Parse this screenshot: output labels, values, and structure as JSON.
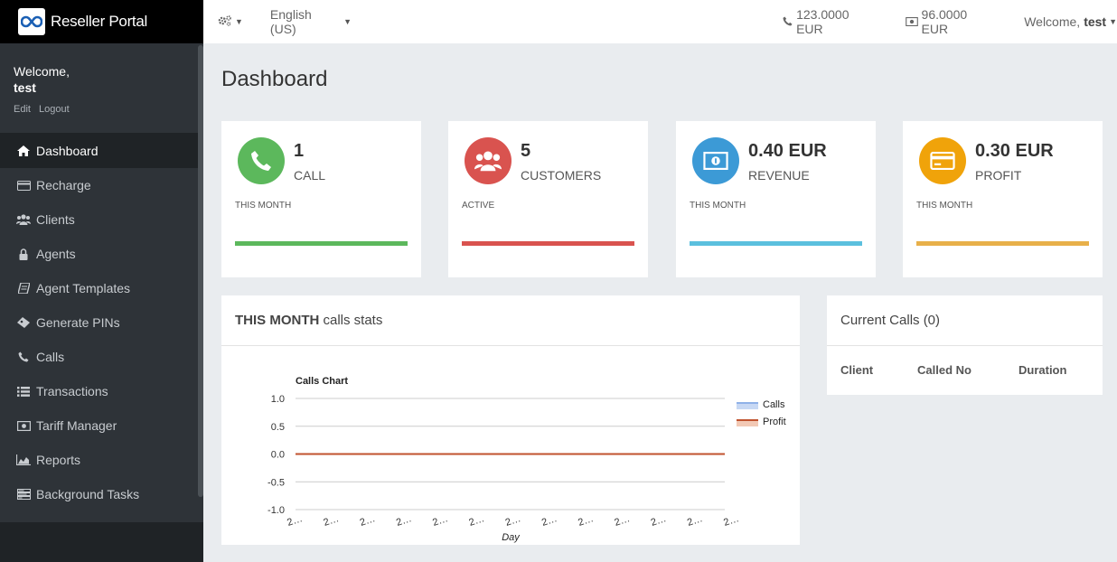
{
  "brand": {
    "name": "Reseller Portal"
  },
  "user": {
    "welcome": "Welcome,",
    "name": "test",
    "edit": "Edit",
    "logout": "Logout"
  },
  "sidebar": {
    "items": [
      {
        "label": "Dashboard",
        "icon": "home-icon",
        "active": true
      },
      {
        "label": "Recharge",
        "icon": "credit-card-icon"
      },
      {
        "label": "Clients",
        "icon": "users-icon"
      },
      {
        "label": "Agents",
        "icon": "user-lock-icon"
      },
      {
        "label": "Agent Templates",
        "icon": "book-icon"
      },
      {
        "label": "Generate PINs",
        "icon": "ticket-icon"
      },
      {
        "label": "Calls",
        "icon": "phone-icon"
      },
      {
        "label": "Transactions",
        "icon": "list-icon"
      },
      {
        "label": "Tariff Manager",
        "icon": "money-icon"
      },
      {
        "label": "Reports",
        "icon": "area-chart-icon"
      },
      {
        "label": "Background Tasks",
        "icon": "tasks-icon"
      }
    ]
  },
  "topbar": {
    "language": "English (US)",
    "balance1": "123.0000 EUR",
    "balance2": "96.0000 EUR",
    "welcome": "Welcome,",
    "username": "test"
  },
  "page": {
    "title": "Dashboard"
  },
  "stats": [
    {
      "value": "1",
      "label": "CALL",
      "sub": "THIS MONTH",
      "color": "#5cb85c",
      "icon": "phone-icon"
    },
    {
      "value": "5",
      "label": "CUSTOMERS",
      "sub": "ACTIVE",
      "color": "#d9534f",
      "icon": "users-icon"
    },
    {
      "value": "0.40 EUR",
      "label": "REVENUE",
      "sub": "THIS MONTH",
      "color": "#3c9ad6",
      "icon": "money-icon"
    },
    {
      "value": "0.30 EUR",
      "label": "PROFIT",
      "sub": "THIS MONTH",
      "color": "#f0a30a",
      "icon": "credit-card-icon"
    }
  ],
  "stats_bar_colors": [
    "#5cb85c",
    "#d9534f",
    "#5bc0de",
    "#e8b04a"
  ],
  "calls_panel": {
    "title_bold": "THIS MONTH",
    "title_rest": " calls stats"
  },
  "current_calls": {
    "title": "Current Calls (0)",
    "columns": [
      "Client",
      "Called No",
      "Duration"
    ]
  },
  "chart_data": {
    "type": "line",
    "title": "Calls Chart",
    "xlabel": "Day",
    "ylabel": "",
    "ylim": [
      -1.0,
      1.0
    ],
    "yticks": [
      "1.0",
      "0.5",
      "0.0",
      "-0.5",
      "-1.0"
    ],
    "x": [
      "2…",
      "2…",
      "2…",
      "2…",
      "2…",
      "2…",
      "2…",
      "2…",
      "2…",
      "2…",
      "2…",
      "2…",
      "2…"
    ],
    "series": [
      {
        "name": "Calls",
        "color": "#8fb1e8",
        "values": [
          0,
          0,
          0,
          0,
          0,
          0,
          0,
          0,
          0,
          0,
          0,
          0,
          0
        ]
      },
      {
        "name": "Profit",
        "color": "#c0522e",
        "values": [
          0,
          0,
          0,
          0,
          0,
          0,
          0,
          0,
          0,
          0,
          0,
          0,
          0
        ]
      }
    ],
    "grid": true,
    "legend": "top-right"
  }
}
